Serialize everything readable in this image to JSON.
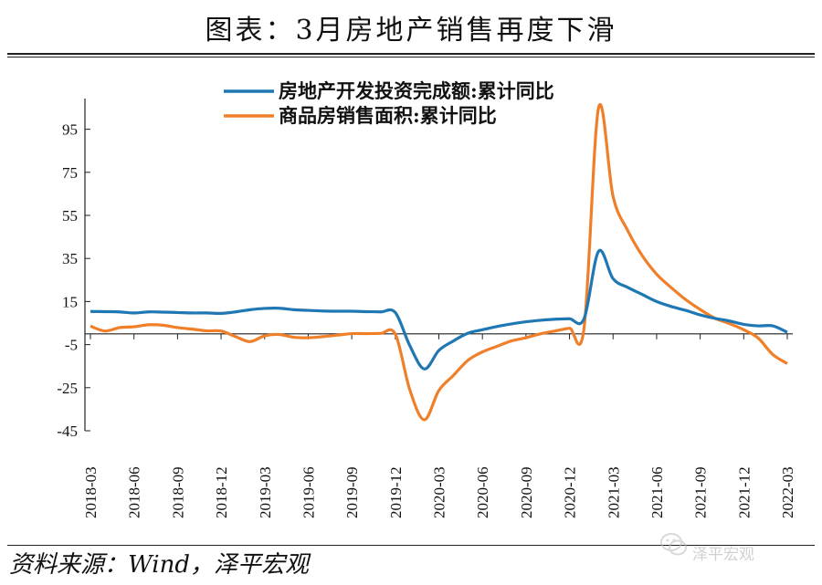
{
  "title": "图表：3月房地产销售再度下滑",
  "source": "资料来源：Wind，泽平宏观",
  "watermark": {
    "text": "泽平宏观",
    "icon": "wechat-logo-icon"
  },
  "chart_data": {
    "type": "line",
    "title": "图表：3月房地产销售再度下滑",
    "xlabel": "",
    "ylabel": "",
    "ylim": [
      -45,
      105
    ],
    "yticks": [
      95,
      75,
      55,
      35,
      15,
      -5,
      -25,
      -45
    ],
    "xtick_labels": [
      "2018-03",
      "2018-06",
      "2018-09",
      "2018-12",
      "2019-03",
      "2019-06",
      "2019-09",
      "2019-12",
      "2020-03",
      "2020-06",
      "2020-09",
      "2020-12",
      "2021-03",
      "2021-06",
      "2021-09",
      "2021-12",
      "2022-03"
    ],
    "legend_position": "top-center",
    "grid": false,
    "x": [
      "2018-03",
      "2018-04",
      "2018-05",
      "2018-06",
      "2018-07",
      "2018-08",
      "2018-09",
      "2018-10",
      "2018-11",
      "2018-12",
      "2019-01",
      "2019-02",
      "2019-03",
      "2019-04",
      "2019-05",
      "2019-06",
      "2019-07",
      "2019-08",
      "2019-09",
      "2019-10",
      "2019-11",
      "2019-12",
      "2020-01",
      "2020-02",
      "2020-03",
      "2020-04",
      "2020-05",
      "2020-06",
      "2020-07",
      "2020-08",
      "2020-09",
      "2020-10",
      "2020-11",
      "2020-12",
      "2021-01",
      "2021-02",
      "2021-03",
      "2021-04",
      "2021-05",
      "2021-06",
      "2021-07",
      "2021-08",
      "2021-09",
      "2021-10",
      "2021-11",
      "2021-12",
      "2022-01",
      "2022-02",
      "2022-03"
    ],
    "series": [
      {
        "name": "房地产开发投资完成额:累计同比",
        "color": "#1f77b4",
        "values": [
          10.4,
          10.3,
          10.2,
          9.7,
          10.2,
          10.1,
          9.9,
          9.7,
          9.7,
          9.5,
          10.2,
          11.2,
          11.8,
          11.9,
          11.2,
          10.9,
          10.6,
          10.5,
          10.5,
          10.3,
          10.2,
          9.9,
          -5.5,
          -16.3,
          -7.7,
          -3.3,
          0.3,
          1.9,
          3.4,
          4.6,
          5.6,
          6.3,
          6.8,
          7.0,
          7.0,
          38.3,
          25.6,
          21.6,
          18.3,
          15.0,
          12.7,
          10.9,
          8.8,
          7.2,
          6.0,
          4.4,
          3.7,
          3.7,
          0.7
        ]
      },
      {
        "name": "商品房销售面积:累计同比",
        "color": "#f07f2a",
        "values": [
          3.6,
          1.3,
          2.9,
          3.3,
          4.2,
          4.0,
          2.9,
          2.2,
          1.4,
          1.3,
          -1.3,
          -3.6,
          -0.9,
          -0.3,
          -1.6,
          -1.8,
          -1.3,
          -0.6,
          0.1,
          0.1,
          0.2,
          -0.1,
          -26.0,
          -39.9,
          -26.3,
          -19.3,
          -12.3,
          -8.4,
          -5.8,
          -3.3,
          -1.8,
          0.0,
          1.3,
          2.6,
          2.6,
          104.9,
          63.8,
          48.1,
          36.4,
          27.7,
          21.5,
          15.9,
          11.3,
          7.3,
          4.8,
          1.9,
          -2.0,
          -9.6,
          -13.8
        ]
      }
    ]
  }
}
